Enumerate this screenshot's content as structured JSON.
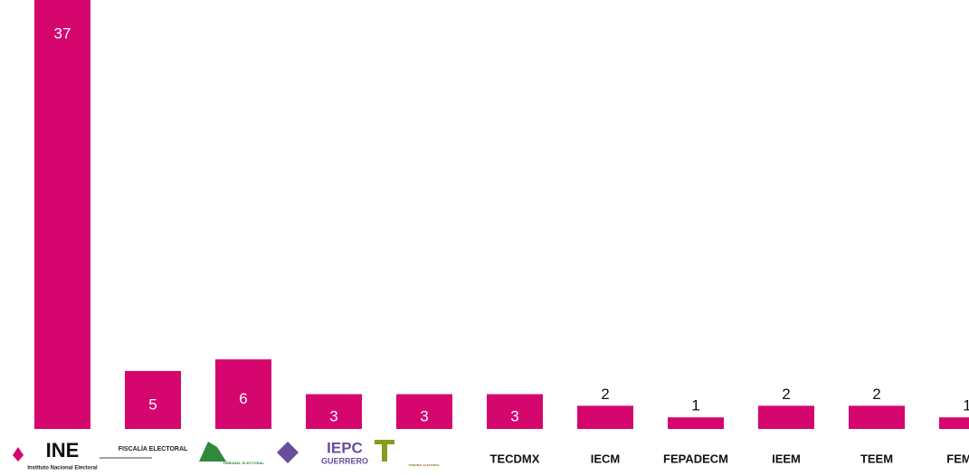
{
  "chart_data": {
    "type": "bar",
    "categories": [
      "INE",
      "FISCALÍA ELECTORAL",
      "TRIBUNAL ELECTORAL",
      "IEPC",
      "TRIBUNAL ELECTORAL",
      "TECDMX",
      "IECM",
      "FEPADECM",
      "IEEM",
      "TEEM",
      "FEMDE"
    ],
    "logo_captions": [
      "Instituto Nacional Electoral",
      null,
      null,
      "GUERRERO",
      null,
      null,
      null,
      null,
      null,
      null,
      null
    ],
    "values": [
      37,
      5,
      6,
      3,
      3,
      3,
      2,
      1,
      2,
      2,
      1
    ],
    "color": "#d6066f"
  }
}
